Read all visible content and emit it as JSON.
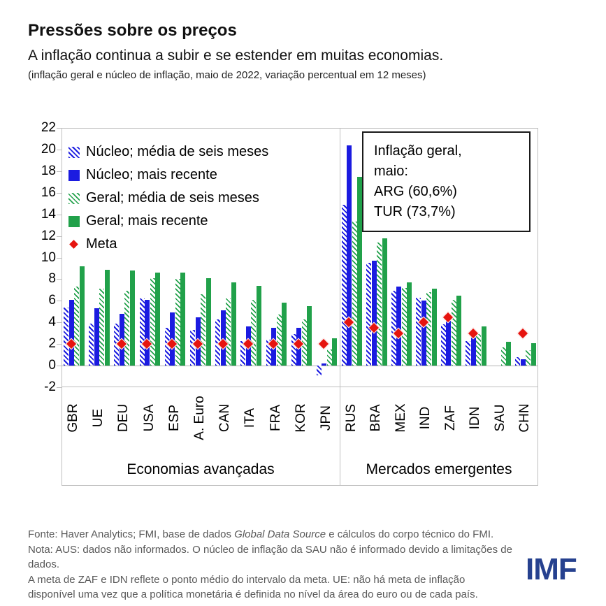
{
  "header": {
    "title": "Pressões sobre os preços",
    "subtitle": "A inflação continua a subir e se estender em muitas economias.",
    "note": "(inflação geral e núcleo de inflação, maio de 2022, variação percentual em 12 meses)"
  },
  "annotation": {
    "lines": [
      "Inflação geral,",
      "maio:",
      "ARG (60,6%)",
      "TUR (73,7%)"
    ]
  },
  "colors": {
    "core_blue": "#1b1be0",
    "headline_green": "#21a14a",
    "meta_red": "#e6140f",
    "footer_gray": "#595959",
    "imf_navy": "#26418f",
    "frame_gray": "#bfbfbf"
  },
  "chart_data": {
    "type": "bar",
    "title": "Pressões sobre os preços",
    "subtitle": "A inflação continua a subir e se estender em muitas economias.",
    "units_note": "(inflação geral e núcleo de inflação, maio de 2022, variação percentual em 12 meses)",
    "ylim": [
      -2,
      22
    ],
    "yticks": [
      22,
      20,
      18,
      16,
      14,
      12,
      10,
      8,
      6,
      4,
      2,
      0,
      -2
    ],
    "grid": false,
    "legend_position": "top-left-inside",
    "legend": [
      {
        "key": "nucleo_media6m",
        "label": "Núcleo; média de seis meses",
        "style": "blue-hatch"
      },
      {
        "key": "nucleo_recente",
        "label": "Núcleo; mais recente",
        "style": "blue-solid"
      },
      {
        "key": "geral_media6m",
        "label": "Geral; média de seis meses",
        "style": "green-hatch"
      },
      {
        "key": "geral_recente",
        "label": "Geral; mais recente",
        "style": "green-solid"
      },
      {
        "key": "meta",
        "label": "Meta",
        "style": "red-diamond"
      }
    ],
    "sections": [
      {
        "label": "Economias avançadas",
        "countries": [
          {
            "code": "GBR",
            "nucleo_media6m": 5.4,
            "nucleo_recente": 6.1,
            "geral_media6m": 7.3,
            "geral_recente": 9.2,
            "meta": 2
          },
          {
            "code": "UE",
            "nucleo_media6m": 3.9,
            "nucleo_recente": 5.3,
            "geral_media6m": 7.1,
            "geral_recente": 8.9,
            "meta": null
          },
          {
            "code": "DEU",
            "nucleo_media6m": 3.9,
            "nucleo_recente": 4.8,
            "geral_media6m": 6.9,
            "geral_recente": 8.8,
            "meta": 2
          },
          {
            "code": "USA",
            "nucleo_media6m": 6.2,
            "nucleo_recente": 6.1,
            "geral_media6m": 8.1,
            "geral_recente": 8.6,
            "meta": 2
          },
          {
            "code": "ESP",
            "nucleo_media6m": 3.5,
            "nucleo_recente": 4.9,
            "geral_media6m": 8.0,
            "geral_recente": 8.6,
            "meta": 2
          },
          {
            "code": "A. Euro",
            "nucleo_media6m": 3.3,
            "nucleo_recente": 4.5,
            "geral_media6m": 6.6,
            "geral_recente": 8.1,
            "meta": 2
          },
          {
            "code": "CAN",
            "nucleo_media6m": 4.3,
            "nucleo_recente": 5.1,
            "geral_media6m": 6.2,
            "geral_recente": 7.7,
            "meta": 2
          },
          {
            "code": "ITA",
            "nucleo_media6m": 2.3,
            "nucleo_recente": 3.6,
            "geral_media6m": 6.1,
            "geral_recente": 7.4,
            "meta": 2
          },
          {
            "code": "FRA",
            "nucleo_media6m": 2.4,
            "nucleo_recente": 3.5,
            "geral_media6m": 4.7,
            "geral_recente": 5.8,
            "meta": 2
          },
          {
            "code": "KOR",
            "nucleo_media6m": 2.9,
            "nucleo_recente": 3.5,
            "geral_media6m": 4.3,
            "geral_recente": 5.5,
            "meta": 2
          },
          {
            "code": "JPN",
            "nucleo_media6m": -0.9,
            "nucleo_recente": 0.2,
            "geral_media6m": 1.5,
            "geral_recente": 2.5,
            "meta": 2
          }
        ]
      },
      {
        "label": "Mercados emergentes",
        "countries": [
          {
            "code": "RUS",
            "nucleo_media6m": 14.9,
            "nucleo_recente": 20.4,
            "geral_media6m": 13.3,
            "geral_recente": 17.5,
            "meta": 4
          },
          {
            "code": "BRA",
            "nucleo_media6m": 9.5,
            "nucleo_recente": 9.7,
            "geral_media6m": 11.4,
            "geral_recente": 11.8,
            "meta": 3.5
          },
          {
            "code": "MEX",
            "nucleo_media6m": 6.9,
            "nucleo_recente": 7.3,
            "geral_media6m": 7.2,
            "geral_recente": 7.7,
            "meta": 3
          },
          {
            "code": "IND",
            "nucleo_media6m": 6.3,
            "nucleo_recente": 6.0,
            "geral_media6m": 6.8,
            "geral_recente": 7.1,
            "meta": 4
          },
          {
            "code": "ZAF",
            "nucleo_media6m": 3.8,
            "nucleo_recente": 4.2,
            "geral_media6m": 6.1,
            "geral_recente": 6.5,
            "meta": 4.5
          },
          {
            "code": "IDN",
            "nucleo_media6m": 2.3,
            "nucleo_recente": 2.6,
            "geral_media6m": 2.9,
            "geral_recente": 3.6,
            "meta": 3
          },
          {
            "code": "SAU",
            "nucleo_media6m": null,
            "nucleo_recente": null,
            "geral_media6m": 1.7,
            "geral_recente": 2.2,
            "meta": null
          },
          {
            "code": "CHN",
            "nucleo_media6m": 0.8,
            "nucleo_recente": 0.6,
            "geral_media6m": 1.4,
            "geral_recente": 2.1,
            "meta": 3
          }
        ]
      }
    ]
  },
  "footer": {
    "line1_prefix": "Fonte: Haver Analytics; FMI, base de dados ",
    "line1_italic": "Global Data Source",
    "line1_suffix": " e cálculos do corpo técnico do FMI.",
    "line2": "Nota: AUS: dados não informados. O núcleo de inflação da SAU não é informado devido a limitações de dados.",
    "line3": "A meta de ZAF e IDN reflete o ponto médio do intervalo da meta. UE: não há meta de inflação",
    "line4": "disponível uma vez que a política monetária é definida no nível da área do euro ou de cada país.",
    "logo": "IMF"
  }
}
